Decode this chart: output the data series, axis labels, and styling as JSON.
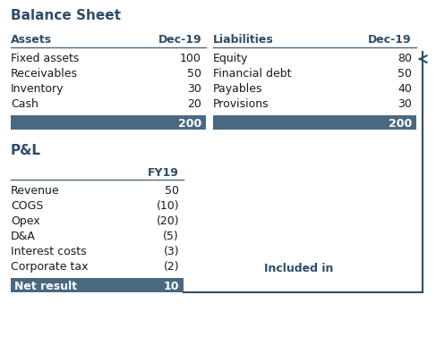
{
  "title_bs": "Balance Sheet",
  "title_pl": "P&L",
  "bg_color": "#ffffff",
  "label_color": "#2e4d6b",
  "total_row_color": "#4a6880",
  "line_color": "#4a6880",
  "border_color": "#2e4d6b",
  "arrow_color": "#2e4d6b",
  "body_text_color": "#1a1a1a",
  "bs_assets_headers": [
    "Assets",
    "Dec-19"
  ],
  "bs_liabilities_headers": [
    "Liabilities",
    "Dec-19"
  ],
  "bs_assets": [
    [
      "Fixed assets",
      "100"
    ],
    [
      "Receivables",
      "50"
    ],
    [
      "Inventory",
      "30"
    ],
    [
      "Cash",
      "20"
    ]
  ],
  "bs_liabilities": [
    [
      "Equity",
      "80"
    ],
    [
      "Financial debt",
      "50"
    ],
    [
      "Payables",
      "40"
    ],
    [
      "Provisions",
      "30"
    ]
  ],
  "bs_total_assets": "200",
  "bs_total_liabilities": "200",
  "pl_header_col": "FY19",
  "pl_rows": [
    [
      "Revenue",
      "50"
    ],
    [
      "COGS",
      "(10)"
    ],
    [
      "Opex",
      "(20)"
    ],
    [
      "D&A",
      "(5)"
    ],
    [
      "Interest costs",
      "(3)"
    ],
    [
      "Corporate tax",
      "(2)"
    ]
  ],
  "pl_net_result_label": "Net result",
  "pl_net_result_value": "10",
  "included_in_text": "Included in",
  "title_fontsize": 11,
  "header_fontsize": 9,
  "body_fontsize": 9,
  "total_fontsize": 9
}
